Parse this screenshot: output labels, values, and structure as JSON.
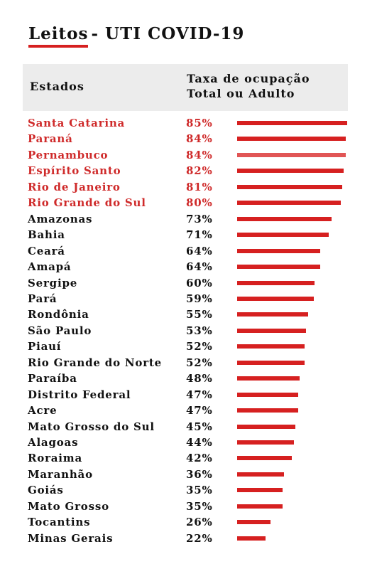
{
  "title": {
    "strong": "Leitos",
    "rest": "- UTI COVID-19"
  },
  "header": {
    "states_label": "Estados",
    "rate_label_line1": "Taxa de ocupação",
    "rate_label_line2": "Total ou Adulto"
  },
  "colors": {
    "accent": "#d62020",
    "highlight_text": "#cf2a2a",
    "header_bg": "#ececec"
  },
  "chart_data": {
    "type": "bar",
    "orientation": "horizontal",
    "title": "Leitos - UTI COVID-19",
    "xlabel": "Taxa de ocupação Total ou Adulto",
    "ylabel": "Estados",
    "xlim": [
      0,
      85
    ],
    "grid": false,
    "categories": [
      "Santa Catarina",
      "Paraná",
      "Pernambuco",
      "Espírito Santo",
      "Rio de Janeiro",
      "Rio Grande do Sul",
      "Amazonas",
      "Bahia",
      "Ceará",
      "Amapá",
      "Sergipe",
      "Pará",
      "Rondônia",
      "São Paulo",
      "Piauí",
      "Rio Grande do Norte",
      "Paraíba",
      "Distrito Federal",
      "Acre",
      "Mato Grosso do Sul",
      "Alagoas",
      "Roraima",
      "Maranhão",
      "Goiás",
      "Mato Grosso",
      "Tocantins",
      "Minas Gerais"
    ],
    "values": [
      85,
      84,
      84,
      82,
      81,
      80,
      73,
      71,
      64,
      64,
      60,
      59,
      55,
      53,
      52,
      52,
      48,
      47,
      47,
      45,
      44,
      42,
      36,
      35,
      35,
      26,
      22
    ],
    "labels": [
      "85%",
      "84%",
      "84%",
      "82%",
      "81%",
      "80%",
      "73%",
      "71%",
      "64%",
      "64%",
      "60%",
      "59%",
      "55%",
      "53%",
      "52%",
      "52%",
      "48%",
      "47%",
      "47%",
      "45%",
      "44%",
      "42%",
      "36%",
      "35%",
      "35%",
      "26%",
      "22%"
    ],
    "highlight_top": 6
  }
}
